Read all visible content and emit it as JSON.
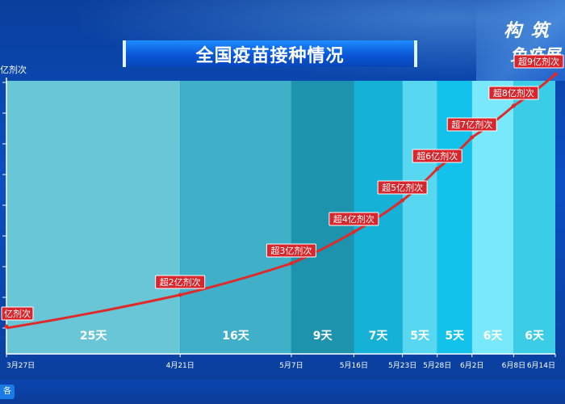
{
  "header": {
    "title": "全国疫苗接种情况",
    "corner_line1": "构 筑",
    "corner_line2": "免疫屏",
    "bottom_tab": "各"
  },
  "chart_data": {
    "type": "line",
    "title": "全国疫苗接种情况",
    "ylabel": "亿剂次",
    "ylim": [
      0,
      9
    ],
    "x_dates": [
      "3月27日",
      "4月21日",
      "5月7日",
      "5月16日",
      "5月23日",
      "5月28日",
      "6月2日",
      "6月8日",
      "6月14日"
    ],
    "x_day_index": [
      0,
      25,
      41,
      50,
      57,
      62,
      67,
      73,
      79
    ],
    "values": [
      1,
      2,
      3,
      4,
      5,
      6,
      7,
      8,
      9
    ],
    "point_labels": [
      "亿剂次",
      "超2亿剂次",
      "超3亿剂次",
      "超4亿剂次",
      "超5亿剂次",
      "超6亿剂次",
      "超7亿剂次",
      "超8亿剂次",
      "超9亿剂次"
    ],
    "intervals": [
      {
        "label": "25天",
        "color": "#69c6d6"
      },
      {
        "label": "16天",
        "color": "#3fb0c8"
      },
      {
        "label": "9天",
        "color": "#1d93ad"
      },
      {
        "label": "7天",
        "color": "#15b1d6"
      },
      {
        "label": "5天",
        "color": "#58d7f0"
      },
      {
        "label": "5天",
        "color": "#12c2ea"
      },
      {
        "label": "6天",
        "color": "#79e8fa"
      },
      {
        "label": "6天",
        "color": "#3ccde6"
      }
    ],
    "line_color": "#e02a2a",
    "label_bg": "#d9262c"
  }
}
